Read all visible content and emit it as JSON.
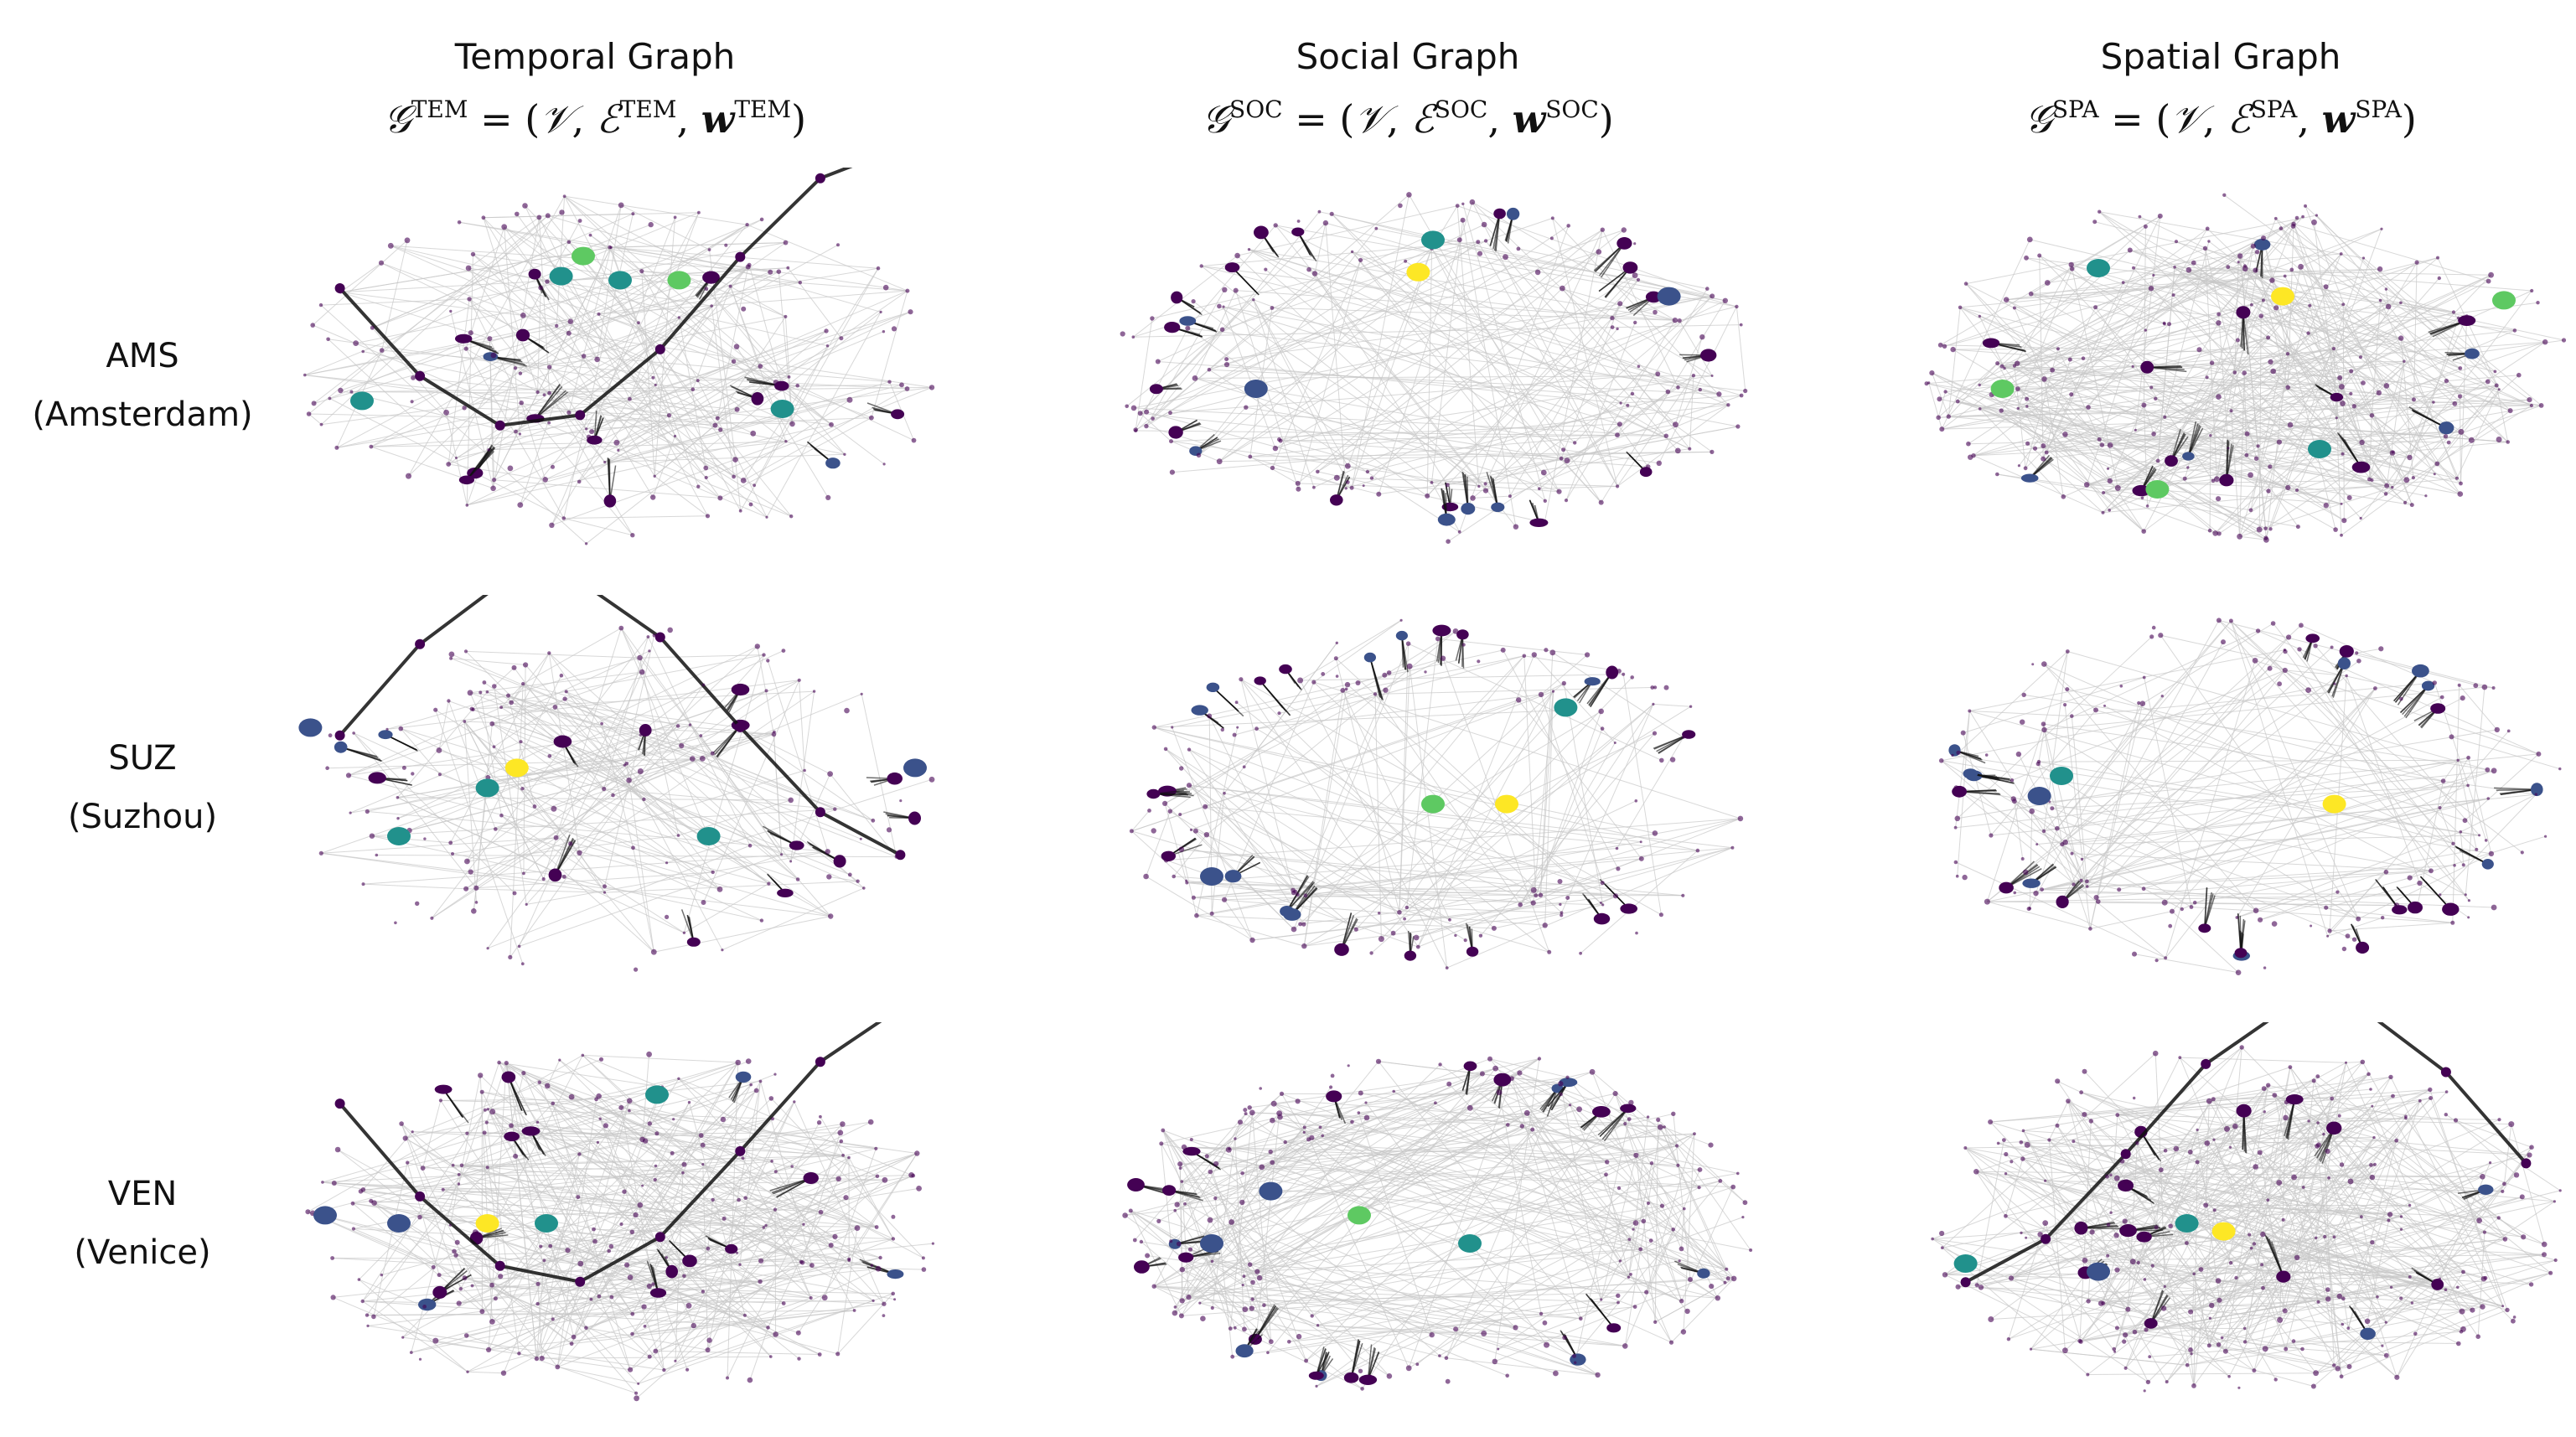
{
  "columns": [
    {
      "title": "Temporal Graph",
      "formula": {
        "G": "𝒢",
        "sup": "TEM",
        "eq": " = (",
        "V": "𝒱",
        "comma1": ", ",
        "E": "ℰ",
        "esup": "TEM",
        "comma2": ", ",
        "w": "w",
        "wsup": "TEM",
        "close": ")"
      }
    },
    {
      "title": "Social Graph",
      "formula": {
        "G": "𝒢",
        "sup": "SOC",
        "eq": " = (",
        "V": "𝒱",
        "comma1": ", ",
        "E": "ℰ",
        "esup": "SOC",
        "comma2": ", ",
        "w": "w",
        "wsup": "SOC",
        "close": ")"
      }
    },
    {
      "title": "Spatial Graph",
      "formula": {
        "G": "𝒢",
        "sup": "SPA",
        "eq": " = (",
        "V": "𝒱",
        "comma1": ", ",
        "E": "ℰ",
        "esup": "SPA",
        "comma2": ", ",
        "w": "w",
        "wsup": "SPA",
        "close": ")"
      }
    }
  ],
  "rows": [
    {
      "code": "AMS",
      "name": "(Amsterdam)"
    },
    {
      "code": "SUZ",
      "name": "(Suzhou)"
    },
    {
      "code": "VEN",
      "name": "(Venice)"
    }
  ],
  "colors": {
    "node_dark": "#440154",
    "node_blue": "#3b528b",
    "node_teal": "#21918c",
    "node_green": "#5ec962",
    "node_yellow": "#fde725",
    "edge_light": "#c8c8c8",
    "edge_dark": "#111111"
  }
}
